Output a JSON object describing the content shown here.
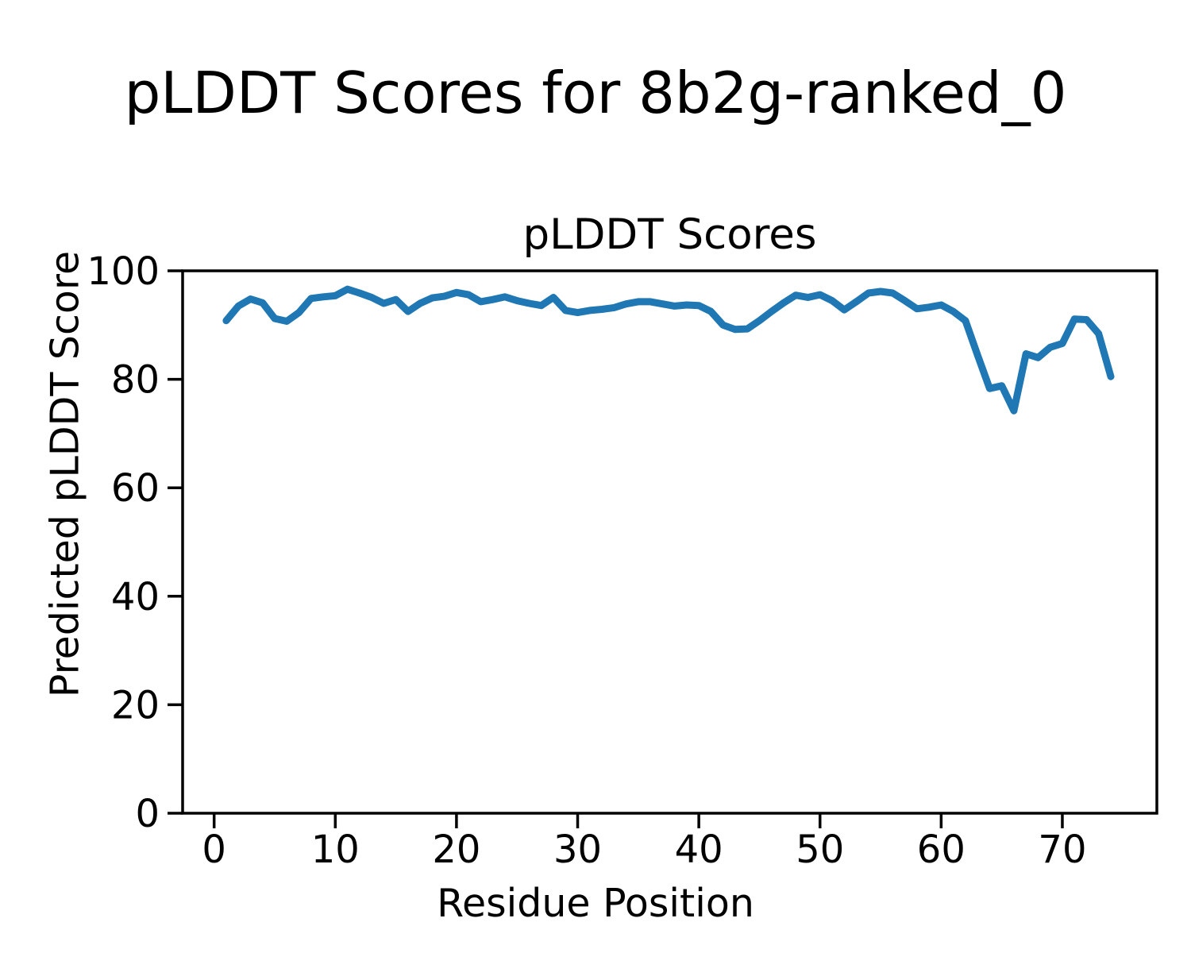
{
  "figure": {
    "suptitle": "pLDDT Scores for 8b2g-ranked_0",
    "axes_title": "pLDDT Scores",
    "xlabel": "Residue Position",
    "ylabel": "Predicted pLDDT Score"
  },
  "colors": {
    "line": "#1f77b4",
    "axis": "#000000",
    "background": "#ffffff"
  },
  "chart_data": {
    "type": "line",
    "title": "pLDDT Scores",
    "suptitle": "pLDDT Scores for 8b2g-ranked_0",
    "xlabel": "Residue Position",
    "ylabel": "Predicted pLDDT Score",
    "grid": false,
    "legend": "none",
    "line_color": "#1f77b4",
    "xlim": [
      -2.6,
      77.8
    ],
    "ylim": [
      0,
      100
    ],
    "x_ticks": [
      0,
      10,
      20,
      30,
      40,
      50,
      60,
      70
    ],
    "y_ticks": [
      0,
      20,
      40,
      60,
      80,
      100
    ],
    "x": [
      1,
      2,
      3,
      4,
      5,
      6,
      7,
      8,
      9,
      10,
      11,
      12,
      13,
      14,
      15,
      16,
      17,
      18,
      19,
      20,
      21,
      22,
      23,
      24,
      25,
      26,
      27,
      28,
      29,
      30,
      31,
      32,
      33,
      34,
      35,
      36,
      37,
      38,
      39,
      40,
      41,
      42,
      43,
      44,
      45,
      46,
      47,
      48,
      49,
      50,
      51,
      52,
      53,
      54,
      55,
      56,
      57,
      58,
      59,
      60,
      61,
      62,
      63,
      64,
      65,
      66,
      67,
      68,
      69,
      70,
      71,
      72,
      73,
      74
    ],
    "values": [
      90.8,
      93.5,
      94.8,
      94.1,
      91.2,
      90.7,
      92.3,
      94.9,
      95.2,
      95.4,
      96.6,
      95.9,
      95.1,
      94.0,
      94.7,
      92.5,
      94.0,
      95.0,
      95.3,
      96.0,
      95.6,
      94.3,
      94.7,
      95.2,
      94.5,
      94.0,
      93.6,
      95.1,
      92.7,
      92.3,
      92.7,
      92.9,
      93.2,
      93.9,
      94.3,
      94.3,
      93.9,
      93.5,
      93.7,
      93.6,
      92.5,
      90.0,
      89.2,
      89.3,
      90.8,
      92.5,
      94.1,
      95.5,
      95.1,
      95.6,
      94.5,
      92.8,
      94.3,
      95.9,
      96.2,
      95.9,
      94.5,
      93.0,
      93.3,
      93.7,
      92.5,
      90.8,
      84.5,
      78.3,
      78.8,
      74.2,
      84.7,
      84.0,
      85.9,
      86.6,
      91.1,
      91.0,
      88.4,
      80.5
    ]
  }
}
